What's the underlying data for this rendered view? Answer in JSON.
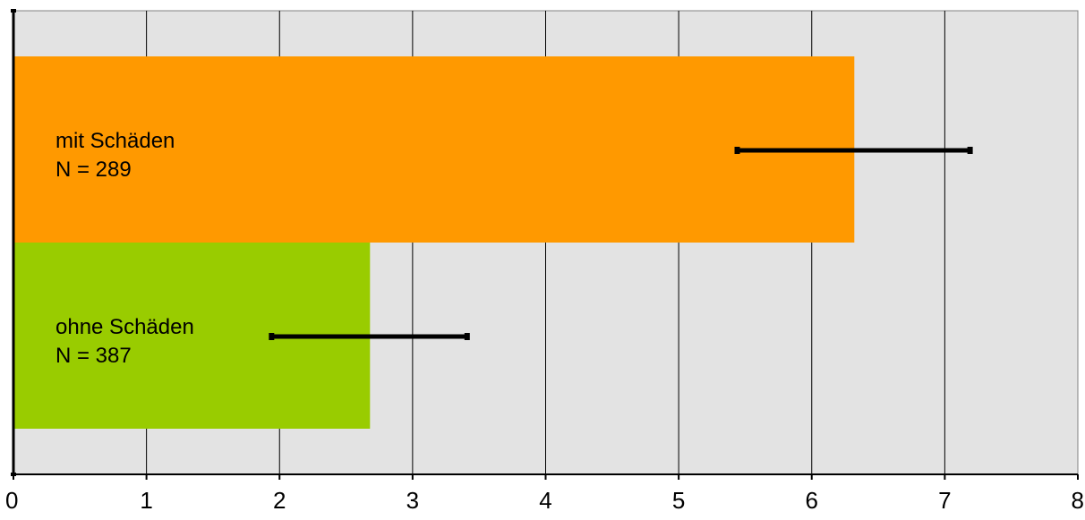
{
  "chart_data": {
    "type": "bar",
    "orientation": "horizontal",
    "categories": [
      "mit Schäden",
      "ohne Schäden"
    ],
    "bar_labels": [
      {
        "line1": "mit Schäden",
        "line2": "N = 289"
      },
      {
        "line1": "ohne Schäden",
        "line2": "N = 387"
      }
    ],
    "values": [
      6.32,
      2.68
    ],
    "error_low": [
      5.44,
      1.94
    ],
    "error_high": [
      7.19,
      3.41
    ],
    "colors": [
      "#FF9900",
      "#99CC00"
    ],
    "xlim": [
      0,
      8
    ],
    "xticks": [
      "0",
      "1",
      "2",
      "3",
      "4",
      "5",
      "6",
      "7",
      "8"
    ],
    "grid": "vertical",
    "plot_background": "#E3E3E3",
    "title": "",
    "xlabel": "",
    "ylabel": ""
  }
}
